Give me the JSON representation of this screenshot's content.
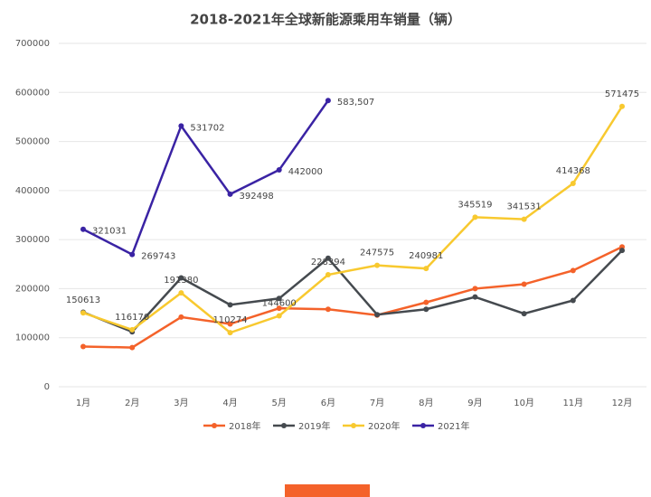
{
  "chart_data": {
    "type": "line",
    "title": "2018-2021年全球新能源乘用车销量（辆）",
    "categories": [
      "1月",
      "2月",
      "3月",
      "4月",
      "5月",
      "6月",
      "7月",
      "8月",
      "9月",
      "10月",
      "11月",
      "12月"
    ],
    "ylim": [
      0,
      700000
    ],
    "yticks": [
      0,
      100000,
      200000,
      300000,
      400000,
      500000,
      600000,
      700000
    ],
    "grid": true,
    "legend": "bottom",
    "series": [
      {
        "name": "2018年",
        "color": "#f4622a",
        "values": [
          82000,
          80000,
          142000,
          128000,
          160000,
          158000,
          146000,
          172000,
          200000,
          209000,
          237000,
          285000
        ]
      },
      {
        "name": "2019年",
        "color": "#454a4f",
        "values": [
          152000,
          112000,
          222000,
          167000,
          180000,
          262000,
          147000,
          158000,
          183000,
          149000,
          176000,
          278000
        ]
      },
      {
        "name": "2020年",
        "color": "#f8c92f",
        "values": [
          150613,
          116170,
          191380,
          110274,
          144600,
          228394,
          247575,
          240981,
          345519,
          341531,
          414368,
          571475
        ],
        "value_labels": [
          "150613",
          "116170",
          "191380",
          "110274",
          "144600",
          "228394",
          "247575",
          "240981",
          "345519",
          "341531",
          "414368",
          "571475"
        ]
      },
      {
        "name": "2021年",
        "color": "#3a23a4",
        "values": [
          321031,
          269743,
          531702,
          392498,
          442000,
          583507,
          null,
          null,
          null,
          null,
          null,
          null
        ],
        "value_labels": [
          "321031",
          "269743",
          "531702",
          "392498",
          "442000",
          "583,507",
          null,
          null,
          null,
          null,
          null,
          null
        ]
      }
    ]
  }
}
